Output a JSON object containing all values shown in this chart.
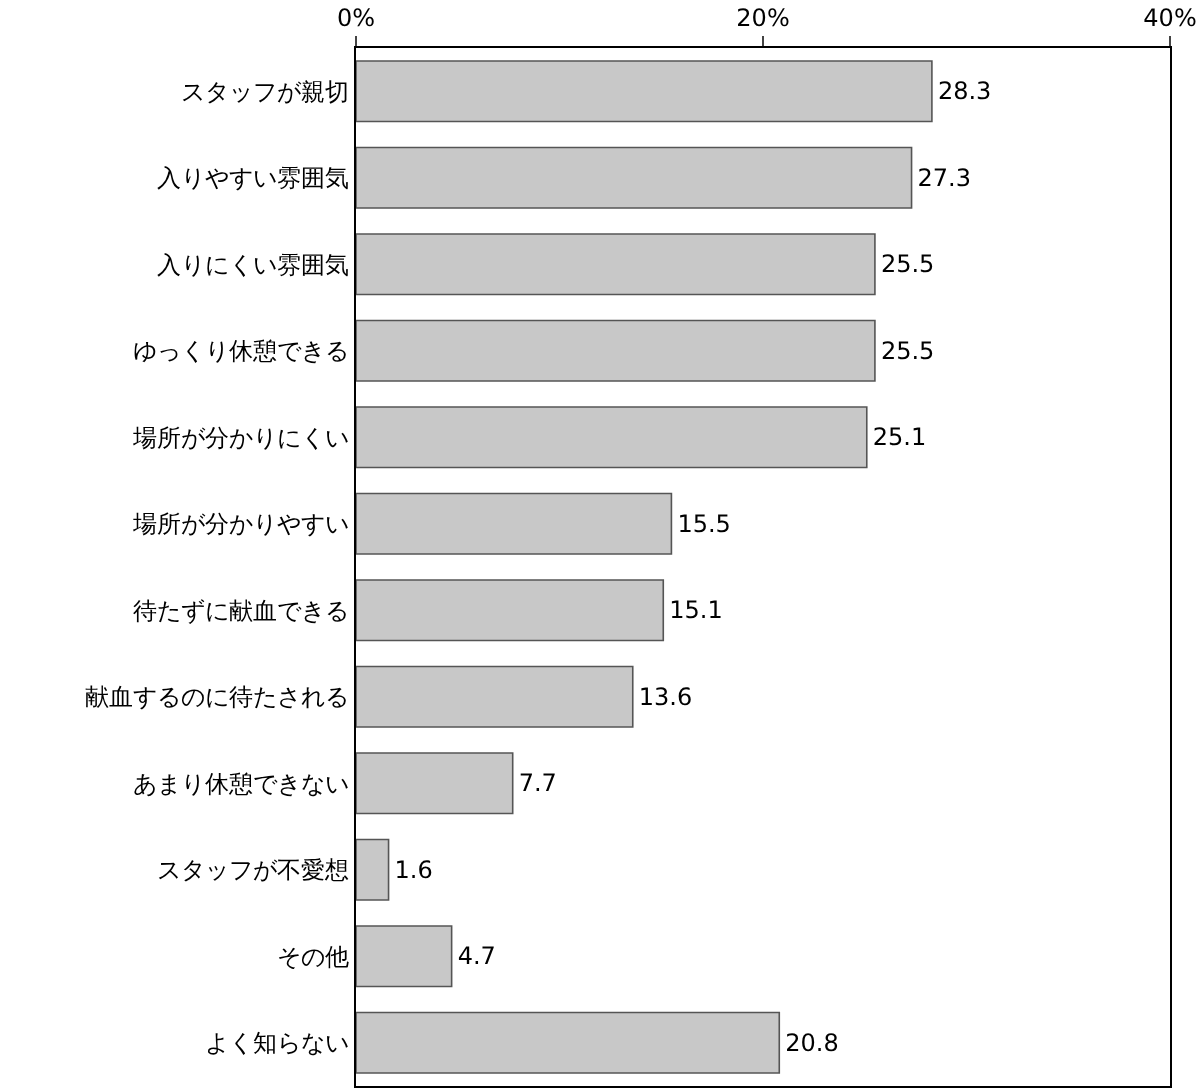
{
  "chart_data": {
    "type": "bar",
    "orientation": "horizontal",
    "categories": [
      "スタッフが親切",
      "入りやすい雰囲気",
      "入りにくい雰囲気",
      "ゆっくり休憩できる",
      "場所が分かりにくい",
      "場所が分かりやすい",
      "待たずに献血できる",
      "献血するのに待たされる",
      "あまり休憩できない",
      "スタッフが不愛想",
      "その他",
      "よく知らない"
    ],
    "values": [
      28.3,
      27.3,
      25.5,
      25.5,
      25.1,
      15.5,
      15.1,
      13.6,
      7.7,
      1.6,
      4.7,
      20.8
    ],
    "color": "#c8c8c8",
    "xlim": [
      0,
      40
    ],
    "xticks": [
      {
        "value": 0,
        "label": "0%"
      },
      {
        "value": 20,
        "label": "20%"
      },
      {
        "value": 40,
        "label": "40%"
      }
    ],
    "data_labels": true
  }
}
